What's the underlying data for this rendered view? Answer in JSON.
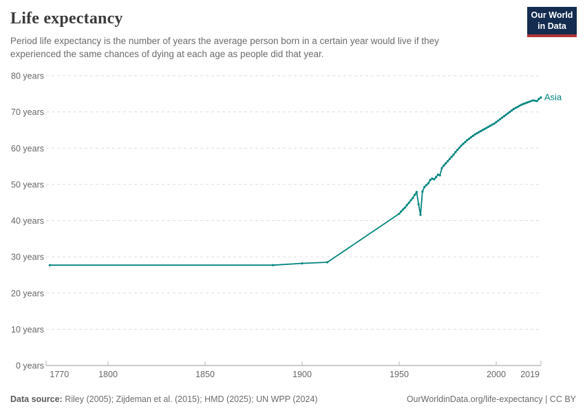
{
  "header": {
    "title": "Life expectancy",
    "subtitle": "Period life expectancy is the number of years the average person born in a certain year would live if they experienced the same chances of dying at each age as people did that year.",
    "logo": {
      "line1": "Our World",
      "line2": "in Data",
      "bg_color": "#142c4f",
      "accent_color": "#b13436",
      "text_color": "#ffffff"
    }
  },
  "chart_data": {
    "type": "line",
    "title": "Life expectancy",
    "xlabel": "",
    "ylabel": "",
    "x_axis": {
      "min": 1768,
      "max": 2023,
      "ticks": [
        1770,
        1800,
        1850,
        1900,
        1950,
        2000,
        2019
      ]
    },
    "y_axis": {
      "min": 0,
      "max": 80,
      "ticks": [
        0,
        10,
        20,
        30,
        40,
        50,
        60,
        70,
        80
      ],
      "tick_suffix": " years",
      "grid": "dashed"
    },
    "legend_position": "end-of-line",
    "colors": {
      "grid": "#dddddd",
      "axis": "#979797",
      "tick": "#b5b5b5",
      "tick_label": "#666666"
    },
    "series": [
      {
        "name": "Asia",
        "color": "#00847e",
        "points": [
          [
            1770,
            27.7
          ],
          [
            1885,
            27.7
          ],
          [
            1900,
            28.2
          ],
          [
            1913,
            28.5
          ],
          [
            1950,
            41.9
          ],
          [
            1951,
            42.5
          ],
          [
            1952,
            43.1
          ],
          [
            1953,
            43.6
          ],
          [
            1954,
            44.3
          ],
          [
            1955,
            44.9
          ],
          [
            1956,
            45.6
          ],
          [
            1957,
            46.2
          ],
          [
            1958,
            47.1
          ],
          [
            1959,
            47.9
          ],
          [
            1960,
            44.5
          ],
          [
            1961,
            41.6
          ],
          [
            1962,
            48.0
          ],
          [
            1963,
            49.3
          ],
          [
            1964,
            49.8
          ],
          [
            1965,
            50.3
          ],
          [
            1966,
            51.2
          ],
          [
            1967,
            51.6
          ],
          [
            1968,
            51.4
          ],
          [
            1969,
            52.0
          ],
          [
            1970,
            52.7
          ],
          [
            1971,
            52.5
          ],
          [
            1972,
            54.5
          ],
          [
            1973,
            55.2
          ],
          [
            1974,
            55.8
          ],
          [
            1975,
            56.4
          ],
          [
            1976,
            57.0
          ],
          [
            1977,
            57.6
          ],
          [
            1978,
            58.2
          ],
          [
            1979,
            58.9
          ],
          [
            1980,
            59.5
          ],
          [
            1981,
            60.1
          ],
          [
            1982,
            60.7
          ],
          [
            1983,
            61.2
          ],
          [
            1984,
            61.7
          ],
          [
            1985,
            62.2
          ],
          [
            1986,
            62.6
          ],
          [
            1987,
            63.0
          ],
          [
            1988,
            63.4
          ],
          [
            1989,
            63.8
          ],
          [
            1990,
            64.1
          ],
          [
            1991,
            64.4
          ],
          [
            1992,
            64.7
          ],
          [
            1993,
            65.0
          ],
          [
            1994,
            65.3
          ],
          [
            1995,
            65.6
          ],
          [
            1996,
            65.9
          ],
          [
            1997,
            66.2
          ],
          [
            1998,
            66.5
          ],
          [
            1999,
            66.8
          ],
          [
            2000,
            67.2
          ],
          [
            2001,
            67.6
          ],
          [
            2002,
            68.0
          ],
          [
            2003,
            68.4
          ],
          [
            2004,
            68.8
          ],
          [
            2005,
            69.2
          ],
          [
            2006,
            69.6
          ],
          [
            2007,
            70.0
          ],
          [
            2008,
            70.4
          ],
          [
            2009,
            70.8
          ],
          [
            2010,
            71.1
          ],
          [
            2011,
            71.4
          ],
          [
            2012,
            71.7
          ],
          [
            2013,
            72.0
          ],
          [
            2014,
            72.2
          ],
          [
            2015,
            72.4
          ],
          [
            2016,
            72.6
          ],
          [
            2017,
            72.8
          ],
          [
            2018,
            73.0
          ],
          [
            2019,
            73.2
          ],
          [
            2020,
            73.1
          ],
          [
            2021,
            73.0
          ],
          [
            2022,
            73.6
          ],
          [
            2023,
            74.0
          ]
        ]
      }
    ]
  },
  "footer": {
    "datasource_label": "Data source:",
    "datasource_value": "Riley (2005); Zijdeman et al. (2015); HMD (2025); UN WPP (2024)",
    "url_license": "OurWorldinData.org/life-expectancy | CC BY"
  }
}
